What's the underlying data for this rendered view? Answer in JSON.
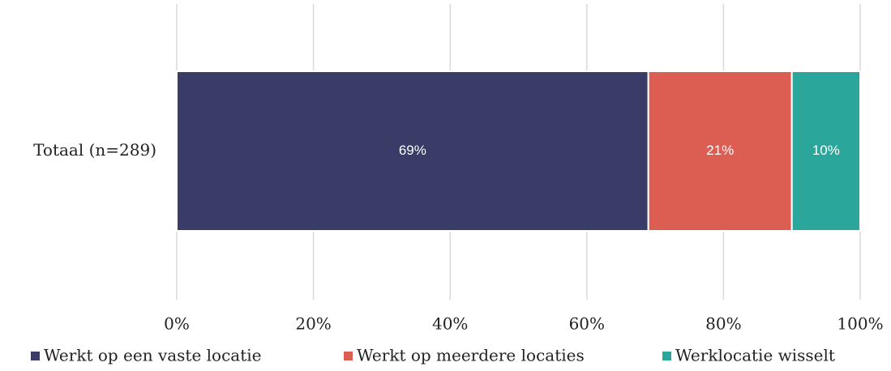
{
  "chart_data": {
    "type": "stacked_bar_horizontal",
    "categories": [
      "Totaal (n=289)"
    ],
    "series": [
      {
        "name": "Werkt op een vaste locatie",
        "color": "#383c66",
        "values": [
          69
        ],
        "value_labels": [
          "69%"
        ]
      },
      {
        "name": "Werkt op meerdere locaties",
        "color": "#dc5d52",
        "values": [
          21
        ],
        "value_labels": [
          "21%"
        ]
      },
      {
        "name": "Werklocatie wisselt",
        "color": "#2aa69b",
        "values": [
          10
        ],
        "value_labels": [
          "10%"
        ]
      }
    ],
    "xlim": [
      0,
      100
    ],
    "xticks": [
      {
        "value": 0,
        "label": "0%"
      },
      {
        "value": 20,
        "label": "20%"
      },
      {
        "value": 40,
        "label": "40%"
      },
      {
        "value": 60,
        "label": "60%"
      },
      {
        "value": 80,
        "label": "80%"
      },
      {
        "value": 100,
        "label": "100%"
      }
    ],
    "grid": true,
    "legend": "bottom"
  }
}
